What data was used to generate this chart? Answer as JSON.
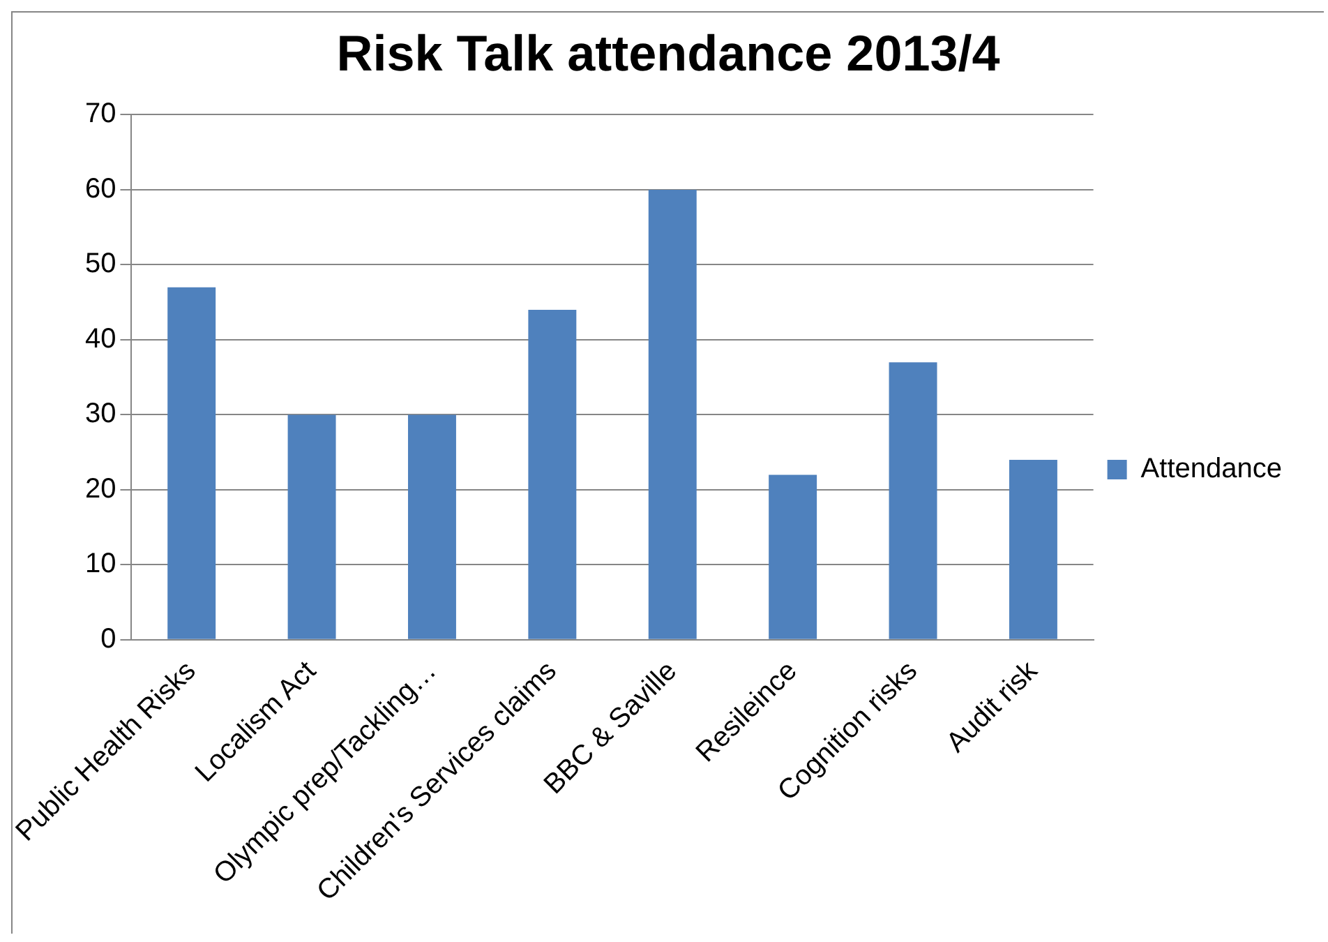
{
  "chart_data": {
    "type": "bar",
    "title": "Risk Talk attendance 2013/4",
    "categories": [
      "Public Health Risks",
      "Localism Act",
      "Olympic prep/Tackling…",
      "Children's Services claims",
      "BBC & Saville",
      "Resileince",
      "Cognition risks",
      "Audit risk"
    ],
    "series": [
      {
        "name": "Attendance",
        "color": "#4f81bd",
        "values": [
          47,
          30,
          30,
          44,
          60,
          22,
          37,
          24
        ]
      }
    ],
    "ylim": [
      0,
      70
    ],
    "yticks": [
      0,
      10,
      20,
      30,
      40,
      50,
      60,
      70
    ],
    "grid": "y",
    "legend": "right"
  }
}
